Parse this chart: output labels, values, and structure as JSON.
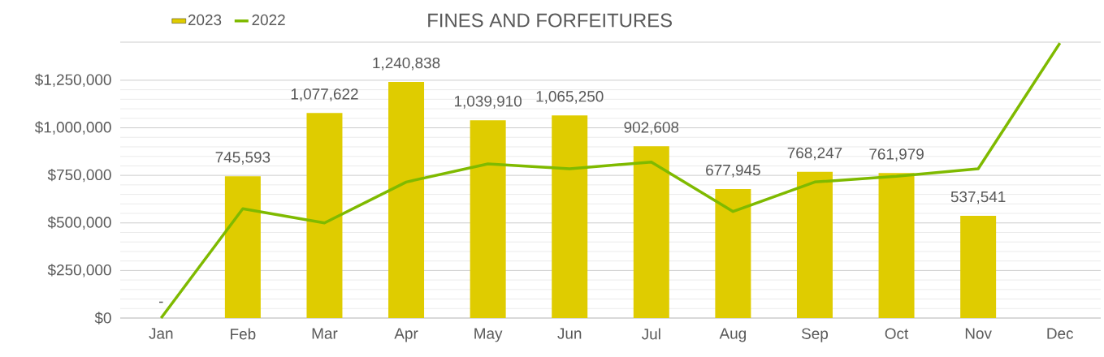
{
  "chart_data": {
    "type": "bar",
    "title": "FINES AND FORFEITURES",
    "categories": [
      "Jan",
      "Feb",
      "Mar",
      "Apr",
      "May",
      "Jun",
      "Jul",
      "Aug",
      "Sep",
      "Oct",
      "Nov",
      "Dec"
    ],
    "series": [
      {
        "name": "2023",
        "color": "#dfcc00",
        "values": [
          0,
          745593,
          1077622,
          1240838,
          1039910,
          1065250,
          902608,
          677945,
          768247,
          761979,
          537541,
          null
        ],
        "value_labels": [
          "-",
          "745,593",
          "1,077,622",
          "1,240,838",
          "1,039,910",
          "1,065,250",
          "902,608",
          "677,945",
          "768,247",
          "761,979",
          "537,541",
          null
        ]
      },
      {
        "name": "2022",
        "type": "line",
        "color": "#7fba00",
        "values": [
          0,
          575000,
          500000,
          715000,
          810000,
          785000,
          820000,
          560000,
          715000,
          745000,
          785000,
          1445000
        ]
      }
    ],
    "ylim": [
      0,
      1450000
    ],
    "yticks": [
      {
        "value": 0,
        "label": "$0"
      },
      {
        "value": 250000,
        "label": "$250,000"
      },
      {
        "value": 500000,
        "label": "$500,000"
      },
      {
        "value": 750000,
        "label": "$750,000"
      },
      {
        "value": 1000000,
        "label": "$1,000,000"
      },
      {
        "value": 1250000,
        "label": "$1,250,000"
      }
    ],
    "grid": "y",
    "legend": "top left"
  }
}
